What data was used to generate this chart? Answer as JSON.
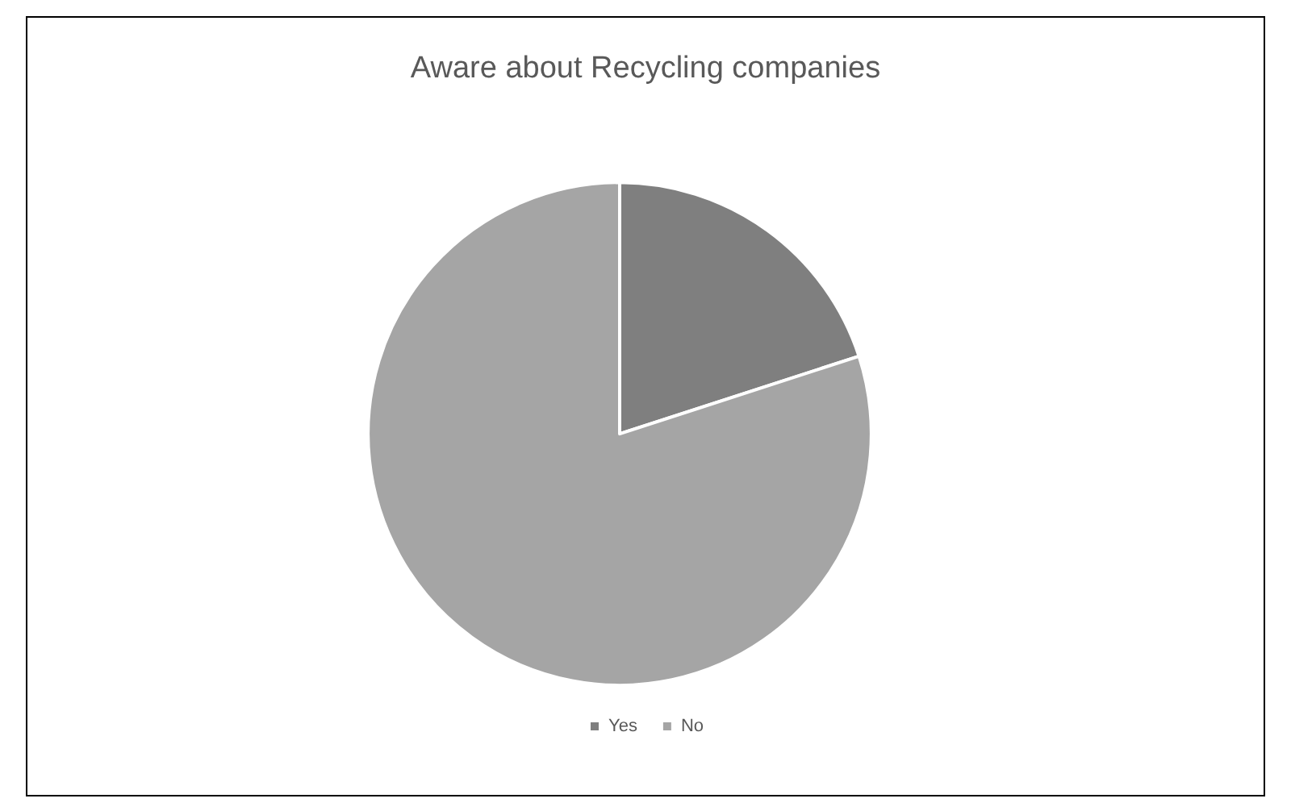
{
  "chart_data": {
    "type": "pie",
    "title": "Aware about Recycling companies",
    "categories": [
      "Yes",
      "No"
    ],
    "values": [
      20,
      80
    ],
    "colors": [
      "#7f7f7f",
      "#a5a5a5"
    ],
    "legend": "bottom"
  }
}
